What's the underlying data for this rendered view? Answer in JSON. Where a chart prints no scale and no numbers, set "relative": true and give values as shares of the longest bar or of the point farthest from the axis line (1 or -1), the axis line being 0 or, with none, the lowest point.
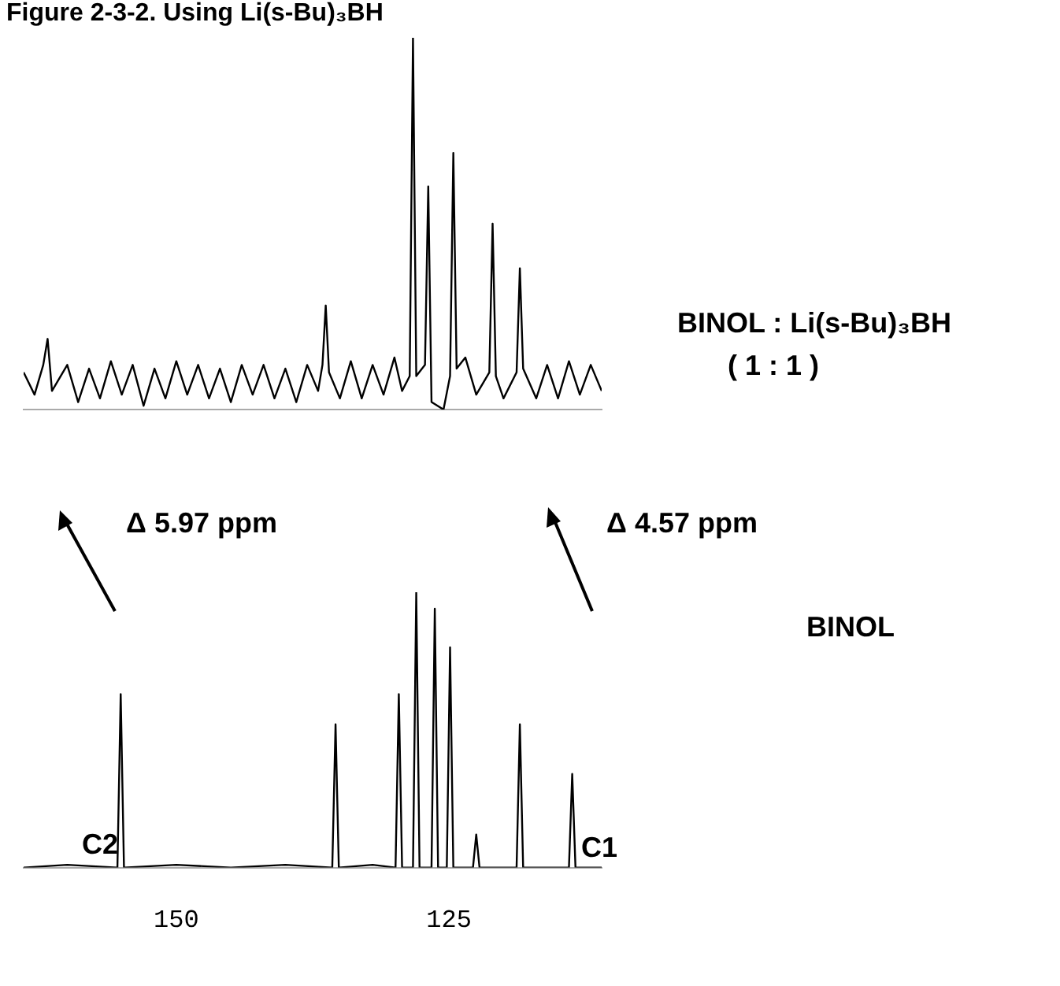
{
  "chart_data": [
    {
      "type": "line",
      "title": "Figure 2-3-2. Using Li(s-Bu)₃BH",
      "relative": true,
      "xlim": [
        164,
        111
      ],
      "grid": false,
      "legend": false,
      "marker": "none",
      "annotations": [
        "BINOL : Li(s-Bu)₃BH",
        "( 1 : 1 )",
        "Δ 5.97 ppm",
        "Δ 4.57 ppm"
      ],
      "series": [
        {
          "color": "#000000",
          "x": [
            164,
            163,
            162.2,
            161.8,
            161.4,
            160,
            159,
            158,
            157,
            156,
            155,
            154,
            153,
            152,
            151,
            150,
            149,
            148,
            147,
            146,
            145,
            144,
            143,
            142,
            141,
            140,
            139,
            138,
            137,
            136.6,
            136.3,
            136,
            135,
            134,
            133,
            132,
            131,
            130,
            129.3,
            128.6,
            128.3,
            128,
            127.2,
            126.9,
            126.6,
            125.5,
            124.9,
            124.6,
            124.3,
            123.5,
            122.5,
            121.3,
            121,
            120.7,
            120,
            118.8,
            118.5,
            118.2,
            117,
            116,
            115,
            114,
            113,
            112,
            111
          ],
          "values": [
            0.1,
            0.04,
            0.12,
            0.19,
            0.05,
            0.12,
            0.02,
            0.11,
            0.03,
            0.13,
            0.04,
            0.12,
            0.01,
            0.11,
            0.03,
            0.13,
            0.04,
            0.12,
            0.03,
            0.11,
            0.02,
            0.12,
            0.04,
            0.12,
            0.03,
            0.11,
            0.02,
            0.12,
            0.05,
            0.12,
            0.28,
            0.1,
            0.03,
            0.13,
            0.03,
            0.12,
            0.04,
            0.14,
            0.05,
            0.09,
            1,
            0.09,
            0.12,
            0.6,
            0.02,
            0,
            0.09,
            0.69,
            0.11,
            0.14,
            0.04,
            0.1,
            0.5,
            0.09,
            0.03,
            0.1,
            0.38,
            0.11,
            0.03,
            0.12,
            0.03,
            0.13,
            0.04,
            0.12,
            0.05
          ]
        }
      ]
    },
    {
      "type": "line",
      "relative": true,
      "xlim": [
        164,
        111
      ],
      "xticks": [
        150,
        125
      ],
      "grid": false,
      "legend": false,
      "marker": "none",
      "annotations": [
        "BINOL",
        "C2",
        "C1"
      ],
      "series": [
        {
          "color": "#000000",
          "x": [
            164,
            160,
            155.4,
            155.1,
            154.8,
            150,
            145,
            140,
            135.7,
            135.4,
            135.1,
            132,
            129.9,
            129.6,
            129.3,
            128.3,
            128,
            127.7,
            126.6,
            126.3,
            126,
            125.2,
            124.9,
            124.6,
            122.8,
            122.5,
            122.2,
            118.8,
            118.5,
            118.2,
            114,
            113.7,
            113.4,
            111
          ],
          "values": [
            0,
            0.01,
            0,
            0.63,
            0,
            0.01,
            0,
            0.01,
            0,
            0.52,
            0,
            0.01,
            0,
            0.63,
            0,
            0,
            1,
            0,
            0,
            0.94,
            0,
            0,
            0.8,
            0,
            0,
            0.12,
            0,
            0,
            0.52,
            0,
            0,
            0.34,
            0,
            0
          ]
        }
      ]
    }
  ]
}
